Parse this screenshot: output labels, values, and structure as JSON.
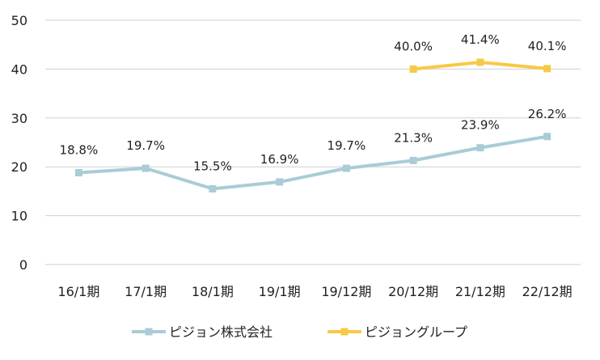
{
  "chart_data": {
    "type": "line",
    "categories": [
      "16/1期",
      "17/1期",
      "18/1期",
      "19/1期",
      "19/12期",
      "20/12期",
      "21/12期",
      "22/12期"
    ],
    "series": [
      {
        "name": "ピジョン株式会社",
        "color": "#a9ccd6",
        "values": [
          18.8,
          19.7,
          15.5,
          16.9,
          19.7,
          21.3,
          23.9,
          26.2
        ],
        "labels": [
          "18.8%",
          "19.7%",
          "15.5%",
          "16.9%",
          "19.7%",
          "21.3%",
          "23.9%",
          "26.2%"
        ]
      },
      {
        "name": "ピジョングループ",
        "color": "#f7c948",
        "values": [
          null,
          null,
          null,
          null,
          null,
          40.0,
          41.4,
          40.1
        ],
        "labels": [
          null,
          null,
          null,
          null,
          null,
          "40.0%",
          "41.4%",
          "40.1%"
        ]
      }
    ],
    "ylim": [
      0,
      50
    ],
    "yticks": [
      0,
      10,
      20,
      30,
      40,
      50
    ],
    "grid": true,
    "legend": "bottom"
  }
}
